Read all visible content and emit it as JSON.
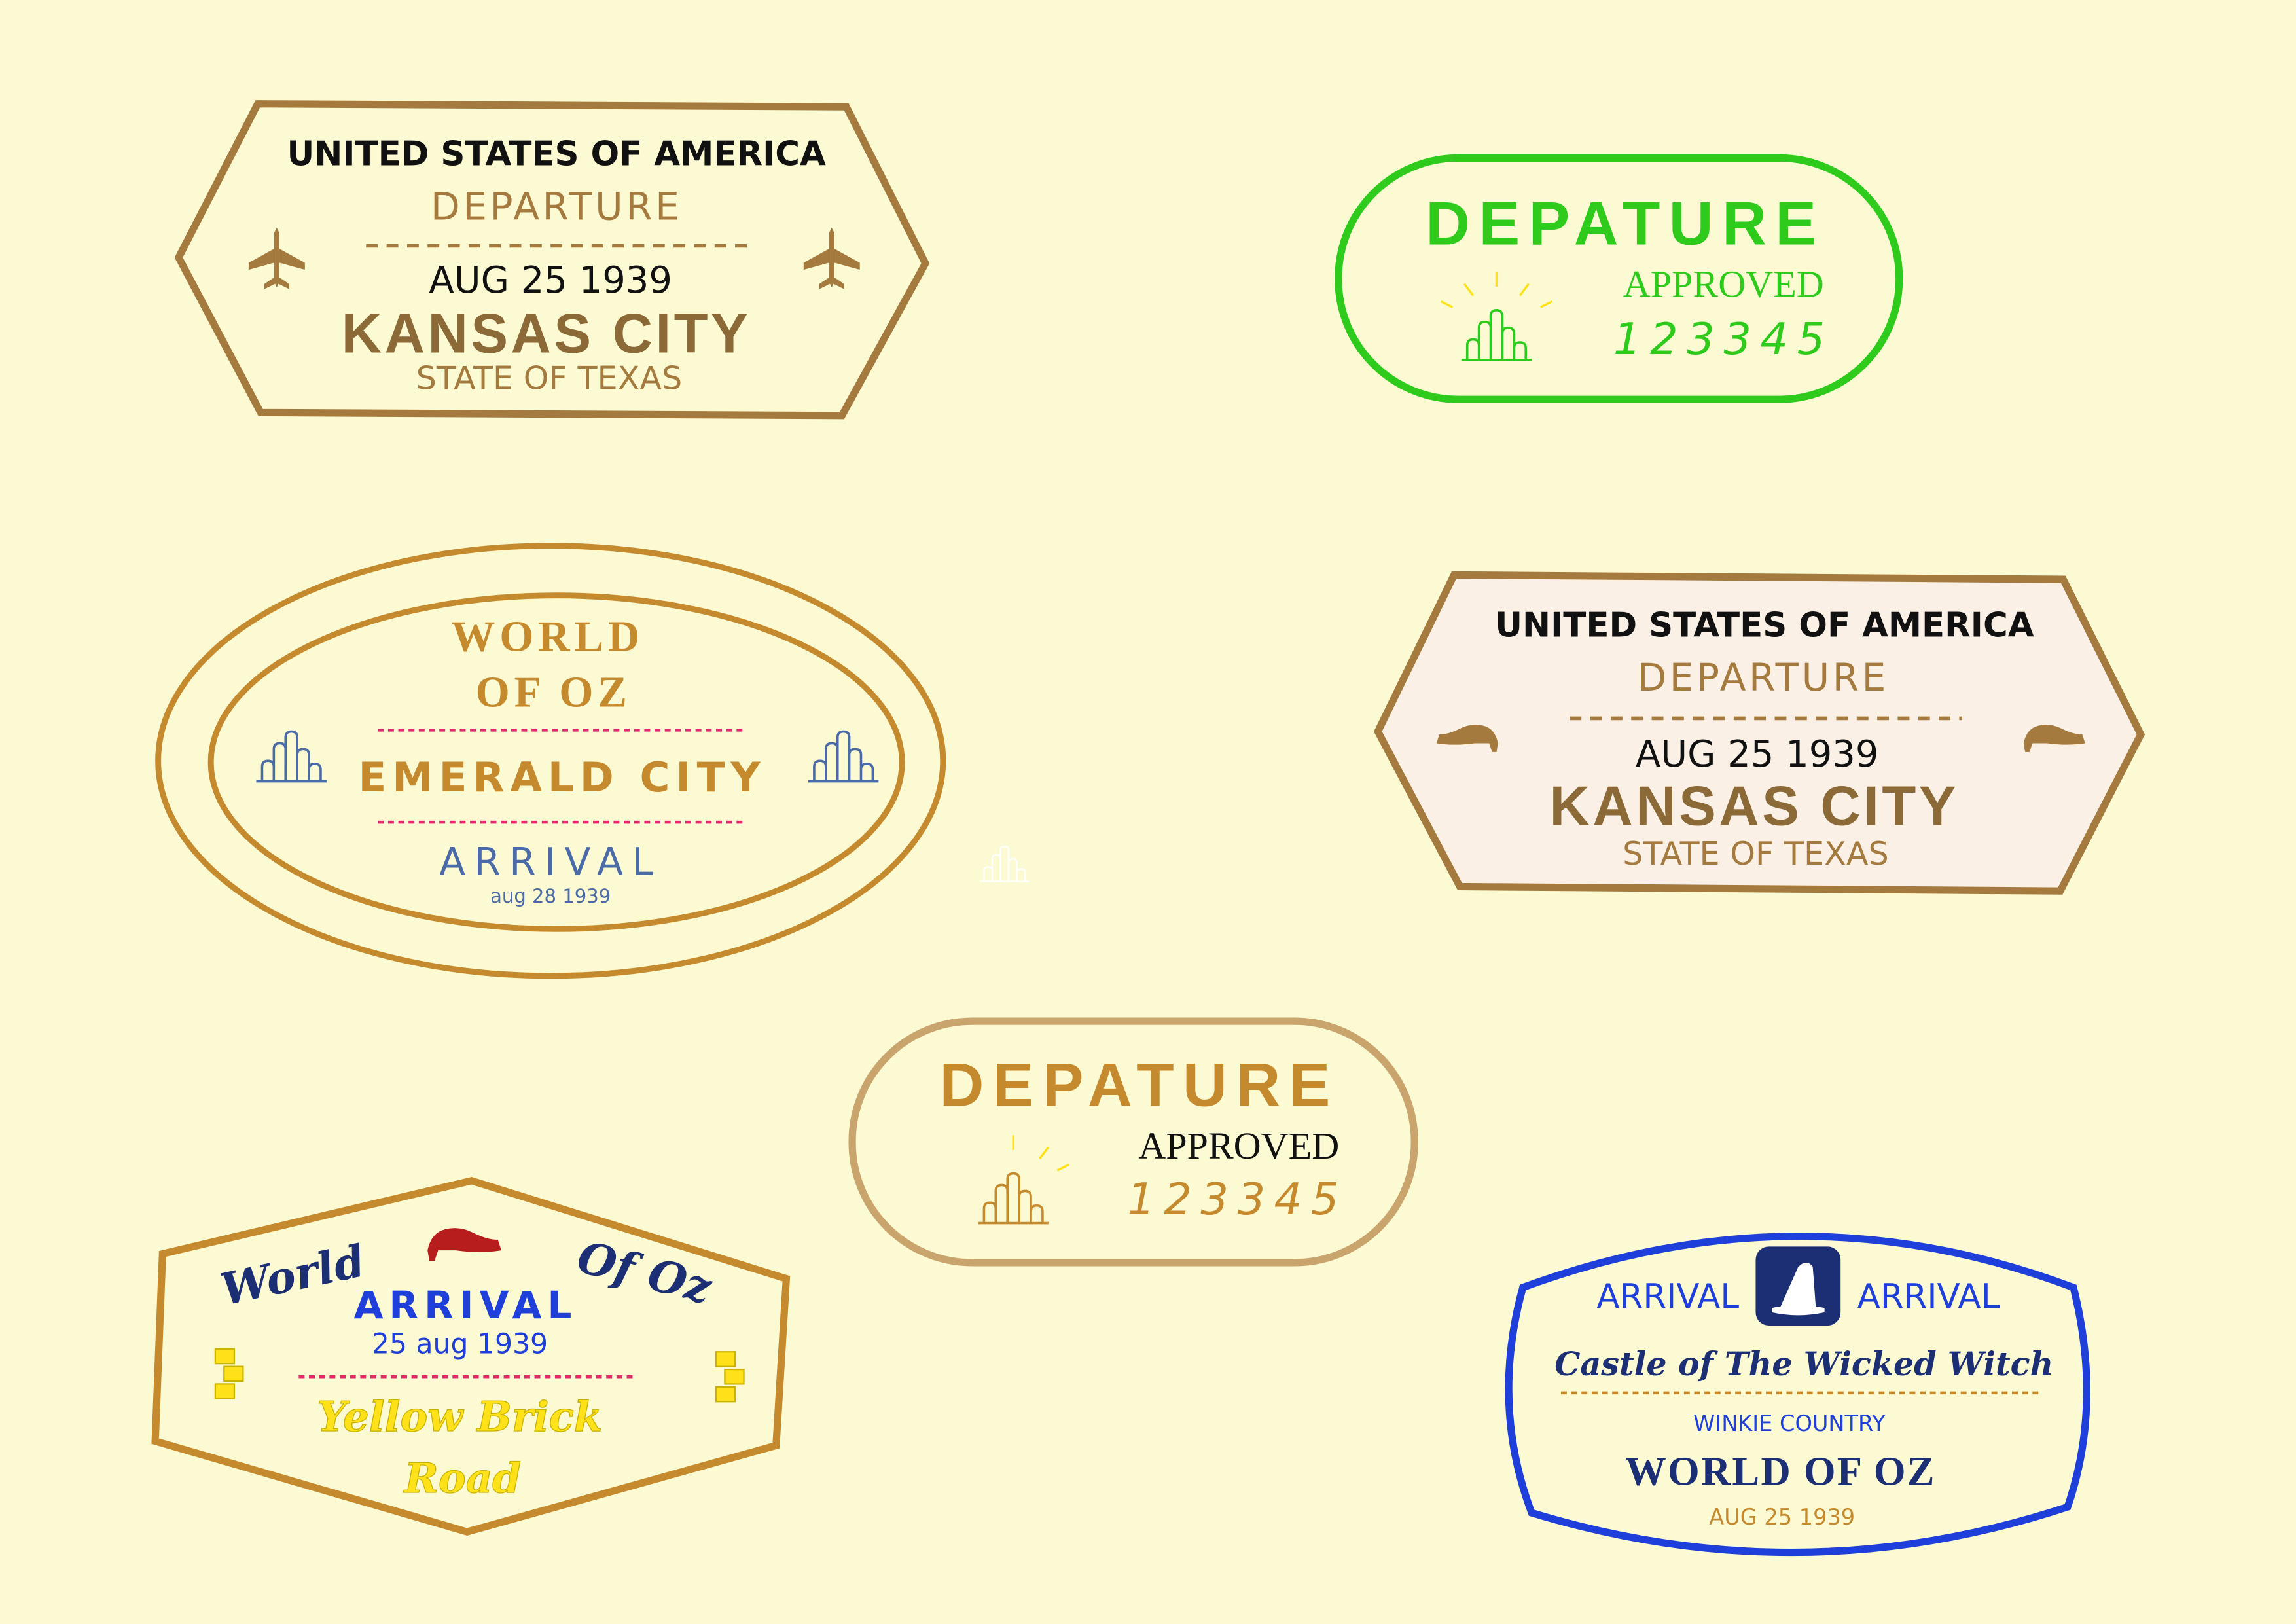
{
  "palette": {
    "background": "#fcfad2",
    "brown": "#a57a3e",
    "brown_dark": "#8c6a37",
    "green": "#2ecb1c",
    "gold": "#c68a2e",
    "tan": "#c9a46d",
    "blue": "#1f3fdb",
    "navy": "#1c2f74",
    "red_pink": "#e02a6b",
    "shoe_red": "#b81d1d",
    "yellow": "#ffe11a",
    "slate_blue": "#4a6aa8",
    "stamp_pink_fill": "#fbf0e6"
  },
  "stamps": {
    "kansas_1": {
      "country": "UNITED STATES OF AMERICA",
      "type": "DEPARTURE",
      "date": "AUG 25 1939",
      "city": "KANSAS CITY",
      "state": "STATE OF TEXAS",
      "icons": [
        "airplane-icon",
        "airplane-icon"
      ]
    },
    "green_departure": {
      "title": "DEPATURE",
      "status": "APPROVED",
      "number": "123345",
      "icon": "city-skyline-icon"
    },
    "emerald_city": {
      "line1": "WORLD",
      "line2": "OF OZ",
      "city": "EMERALD CITY",
      "type": "ARRIVAL",
      "date": "aug 28 1939",
      "icons": [
        "city-skyline-icon",
        "city-skyline-icon"
      ]
    },
    "kansas_2": {
      "country": "UNITED STATES OF AMERICA",
      "type": "DEPARTURE",
      "date": "AUG 25 1939",
      "city": "KANSAS CITY",
      "state": "STATE OF TEXAS",
      "icons": [
        "shoe-icon",
        "shoe-icon"
      ]
    },
    "tan_departure": {
      "title": "DEPATURE",
      "status": "APPROVED",
      "number": "123345",
      "icon": "city-skyline-icon"
    },
    "yellow_brick": {
      "left": "World",
      "right": "Of Oz",
      "type": "ARRIVAL",
      "date": "25 aug 1939",
      "road1": "Yellow Brick",
      "road2": "Road",
      "icons": [
        "ruby-slipper-icon",
        "brick-icon",
        "brick-icon"
      ]
    },
    "wicked_witch": {
      "left": "ARRIVAL",
      "right": "ARRIVAL",
      "castle": "Castle of The Wicked Witch",
      "region": "WINKIE COUNTRY",
      "world": "WORLD OF OZ",
      "date": "AUG 25 1939",
      "icon": "witch-hat-icon"
    }
  }
}
